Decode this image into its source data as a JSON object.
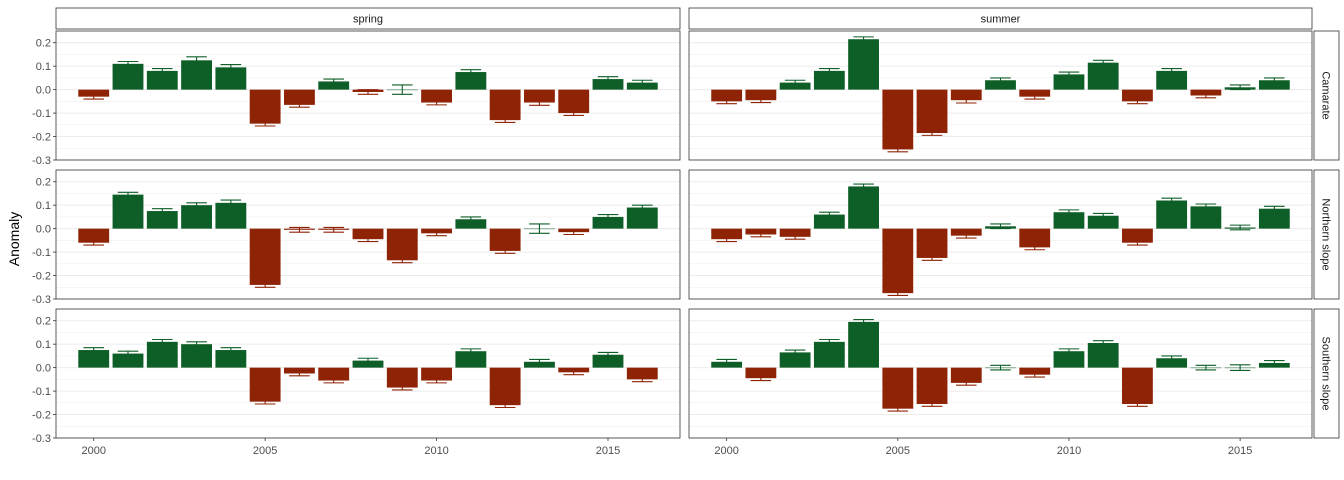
{
  "chart_data": {
    "type": "bar",
    "ylabel": "Anomaly",
    "xlabel": "",
    "ylim": [
      -0.3,
      0.25
    ],
    "xlim": [
      1998.9,
      2017.1
    ],
    "yticks": [
      -0.3,
      -0.2,
      -0.1,
      0.0,
      0.1,
      0.2
    ],
    "ytick_labels": [
      "-0.3",
      "-0.2",
      "-0.1",
      "0.0",
      "0.1",
      "0.2"
    ],
    "xticks": [
      2000,
      2005,
      2010,
      2015
    ],
    "xtick_labels": [
      "2000",
      "2005",
      "2010",
      "2015"
    ],
    "grid": true,
    "colors": {
      "positive": "#0d5e27",
      "negative": "#8f2305"
    },
    "columns": [
      "spring",
      "summer"
    ],
    "rows": [
      "Camarate",
      "Northern slope",
      "Southern slope"
    ],
    "years": [
      2000,
      2001,
      2002,
      2003,
      2004,
      2005,
      2006,
      2007,
      2008,
      2009,
      2010,
      2011,
      2012,
      2013,
      2014,
      2015,
      2016
    ],
    "panels": [
      {
        "row": "Camarate",
        "column": "spring",
        "values": [
          -0.03,
          0.11,
          0.08,
          0.125,
          0.095,
          -0.145,
          -0.065,
          0.035,
          -0.01,
          0.0,
          -0.055,
          0.075,
          -0.13,
          -0.055,
          -0.1,
          0.045,
          0.03
        ],
        "error": [
          0.01,
          0.01,
          0.01,
          0.015,
          0.012,
          0.01,
          0.01,
          0.01,
          0.01,
          0.02,
          0.01,
          0.01,
          0.01,
          0.012,
          0.01,
          0.01,
          0.01
        ]
      },
      {
        "row": "Camarate",
        "column": "summer",
        "values": [
          -0.05,
          -0.045,
          0.03,
          0.08,
          0.215,
          -0.255,
          -0.185,
          -0.045,
          0.04,
          -0.03,
          0.065,
          0.115,
          -0.05,
          0.08,
          -0.025,
          0.01,
          0.04
        ],
        "error": [
          0.01,
          0.01,
          0.01,
          0.01,
          0.01,
          0.01,
          0.01,
          0.012,
          0.01,
          0.01,
          0.01,
          0.01,
          0.01,
          0.01,
          0.01,
          0.01,
          0.01
        ]
      },
      {
        "row": "Northern slope",
        "column": "spring",
        "values": [
          -0.06,
          0.145,
          0.075,
          0.1,
          0.11,
          -0.24,
          -0.005,
          -0.005,
          -0.045,
          -0.135,
          -0.02,
          0.04,
          -0.095,
          0.0,
          -0.015,
          0.05,
          0.09
        ],
        "error": [
          0.01,
          0.01,
          0.01,
          0.01,
          0.012,
          0.01,
          0.01,
          0.01,
          0.01,
          0.01,
          0.01,
          0.01,
          0.01,
          0.02,
          0.01,
          0.01,
          0.01
        ]
      },
      {
        "row": "Northern slope",
        "column": "summer",
        "values": [
          -0.045,
          -0.025,
          -0.035,
          0.06,
          0.18,
          -0.275,
          -0.125,
          -0.03,
          0.01,
          -0.08,
          0.07,
          0.055,
          -0.06,
          0.12,
          0.095,
          0.005,
          0.085
        ],
        "error": [
          0.01,
          0.01,
          0.01,
          0.01,
          0.01,
          0.01,
          0.01,
          0.01,
          0.01,
          0.01,
          0.01,
          0.01,
          0.01,
          0.01,
          0.01,
          0.01,
          0.01
        ]
      },
      {
        "row": "Southern slope",
        "column": "spring",
        "values": [
          0.075,
          0.06,
          0.11,
          0.1,
          0.075,
          -0.145,
          -0.025,
          -0.055,
          0.03,
          -0.085,
          -0.055,
          0.07,
          -0.16,
          0.025,
          -0.02,
          0.055,
          -0.05
        ],
        "error": [
          0.01,
          0.01,
          0.01,
          0.01,
          0.01,
          0.01,
          0.01,
          0.01,
          0.01,
          0.01,
          0.01,
          0.01,
          0.01,
          0.01,
          0.01,
          0.01,
          0.01
        ]
      },
      {
        "row": "Southern slope",
        "column": "summer",
        "values": [
          0.025,
          -0.045,
          0.065,
          0.11,
          0.195,
          -0.175,
          -0.155,
          -0.065,
          0.0,
          -0.03,
          0.07,
          0.105,
          -0.155,
          0.04,
          0.0,
          0.0,
          0.02
        ],
        "error": [
          0.01,
          0.01,
          0.01,
          0.01,
          0.01,
          0.01,
          0.01,
          0.01,
          0.01,
          0.01,
          0.01,
          0.01,
          0.01,
          0.01,
          0.01,
          0.012,
          0.01
        ]
      }
    ]
  }
}
